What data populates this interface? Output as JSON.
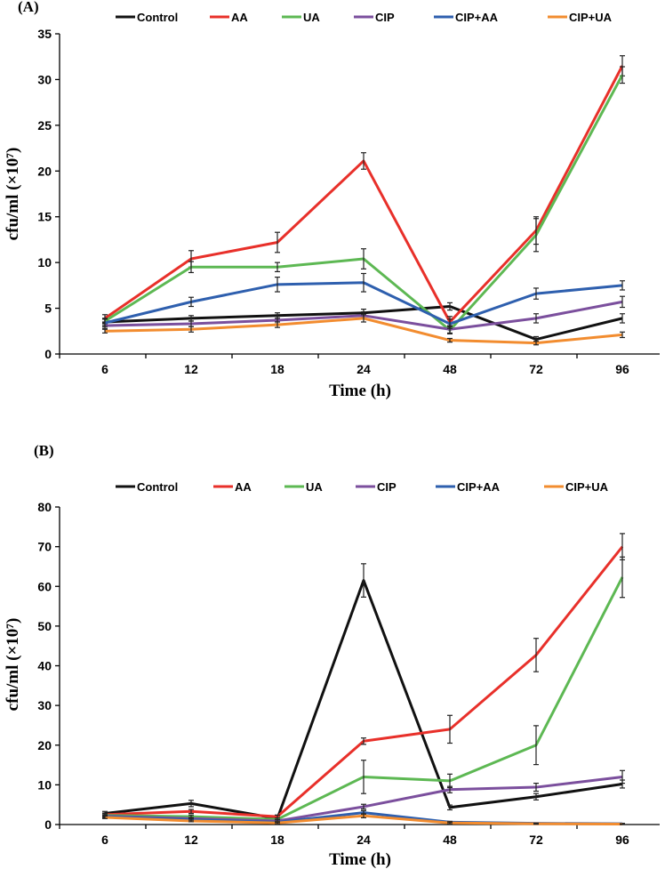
{
  "chart_data": [
    {
      "type": "line",
      "panel_label": "(A)",
      "xlabel": "Time (h)",
      "ylabel": "cfu/ml (×10⁷)",
      "categories": [
        "6",
        "12",
        "18",
        "24",
        "48",
        "72",
        "96"
      ],
      "ylim": [
        0,
        35
      ],
      "yticks": [
        0,
        5,
        10,
        15,
        20,
        25,
        30,
        35
      ],
      "series": [
        {
          "name": "Control",
          "color": "#111111",
          "values": [
            3.5,
            3.9,
            4.2,
            4.5,
            5.2,
            1.6,
            3.9
          ],
          "errors": [
            0.4,
            0.3,
            0.3,
            0.4,
            0.4,
            0.3,
            0.5
          ]
        },
        {
          "name": "AA",
          "color": "#e8302a",
          "values": [
            3.9,
            10.4,
            12.2,
            21.1,
            3.5,
            13.5,
            31.5
          ],
          "errors": [
            0.4,
            0.9,
            1.1,
            0.9,
            0.6,
            1.5,
            1.1
          ]
        },
        {
          "name": "UA",
          "color": "#5db853",
          "values": [
            3.6,
            9.5,
            9.5,
            10.4,
            2.6,
            13.0,
            30.5
          ],
          "errors": [
            0.3,
            0.6,
            0.5,
            1.1,
            0.4,
            1.8,
            0.9
          ]
        },
        {
          "name": "CIP",
          "color": "#7b4f9d",
          "values": [
            3.1,
            3.3,
            3.7,
            4.2,
            2.7,
            3.9,
            5.7
          ],
          "errors": [
            0.3,
            0.3,
            0.4,
            0.4,
            0.4,
            0.5,
            0.6
          ]
        },
        {
          "name": "CIP+AA",
          "color": "#2e5fae",
          "values": [
            3.4,
            5.7,
            7.6,
            7.8,
            3.3,
            6.6,
            7.5
          ],
          "errors": [
            0.4,
            0.5,
            0.8,
            1.0,
            0.5,
            0.6,
            0.5
          ]
        },
        {
          "name": "CIP+UA",
          "color": "#f28c2f",
          "values": [
            2.5,
            2.7,
            3.2,
            3.9,
            1.5,
            1.2,
            2.1
          ],
          "errors": [
            0.2,
            0.3,
            0.3,
            0.4,
            0.2,
            0.2,
            0.3
          ]
        }
      ]
    },
    {
      "type": "line",
      "panel_label": "(B)",
      "xlabel": "Time (h)",
      "ylabel": "cfu/ml (×10⁷)",
      "categories": [
        "6",
        "12",
        "18",
        "24",
        "48",
        "72",
        "96"
      ],
      "ylim": [
        0,
        80
      ],
      "yticks": [
        0,
        10,
        20,
        30,
        40,
        50,
        60,
        70,
        80
      ],
      "series": [
        {
          "name": "Control",
          "color": "#111111",
          "values": [
            2.8,
            5.3,
            1.5,
            61.5,
            4.3,
            7.0,
            10.2
          ],
          "errors": [
            0.5,
            0.8,
            0.5,
            4.2,
            0.6,
            0.8,
            1.0
          ]
        },
        {
          "name": "AA",
          "color": "#e8302a",
          "values": [
            2.5,
            3.3,
            2.0,
            21.0,
            24.0,
            42.7,
            70.0
          ],
          "errors": [
            0.4,
            0.5,
            0.4,
            0.8,
            3.5,
            4.2,
            3.3
          ]
        },
        {
          "name": "UA",
          "color": "#5db853",
          "values": [
            2.3,
            2.0,
            1.3,
            12.0,
            11.0,
            20.0,
            62.3
          ],
          "errors": [
            0.4,
            0.4,
            0.3,
            4.2,
            1.7,
            4.9,
            5.1
          ]
        },
        {
          "name": "CIP",
          "color": "#7b4f9d",
          "values": [
            2.1,
            1.5,
            0.9,
            4.5,
            8.8,
            9.4,
            12.0
          ],
          "errors": [
            0.3,
            0.3,
            0.3,
            0.6,
            0.8,
            1.0,
            1.6
          ]
        },
        {
          "name": "CIP+AA",
          "color": "#2e5fae",
          "values": [
            2.0,
            1.2,
            0.6,
            3.0,
            0.6,
            0.3,
            0.2
          ],
          "errors": [
            0.3,
            0.3,
            0.2,
            0.5,
            0.2,
            0.1,
            0.1
          ]
        },
        {
          "name": "CIP+UA",
          "color": "#f28c2f",
          "values": [
            1.8,
            0.9,
            0.4,
            2.2,
            0.4,
            0.2,
            0.1
          ],
          "errors": [
            0.3,
            0.2,
            0.2,
            0.5,
            0.2,
            0.1,
            0.1
          ]
        }
      ]
    }
  ]
}
